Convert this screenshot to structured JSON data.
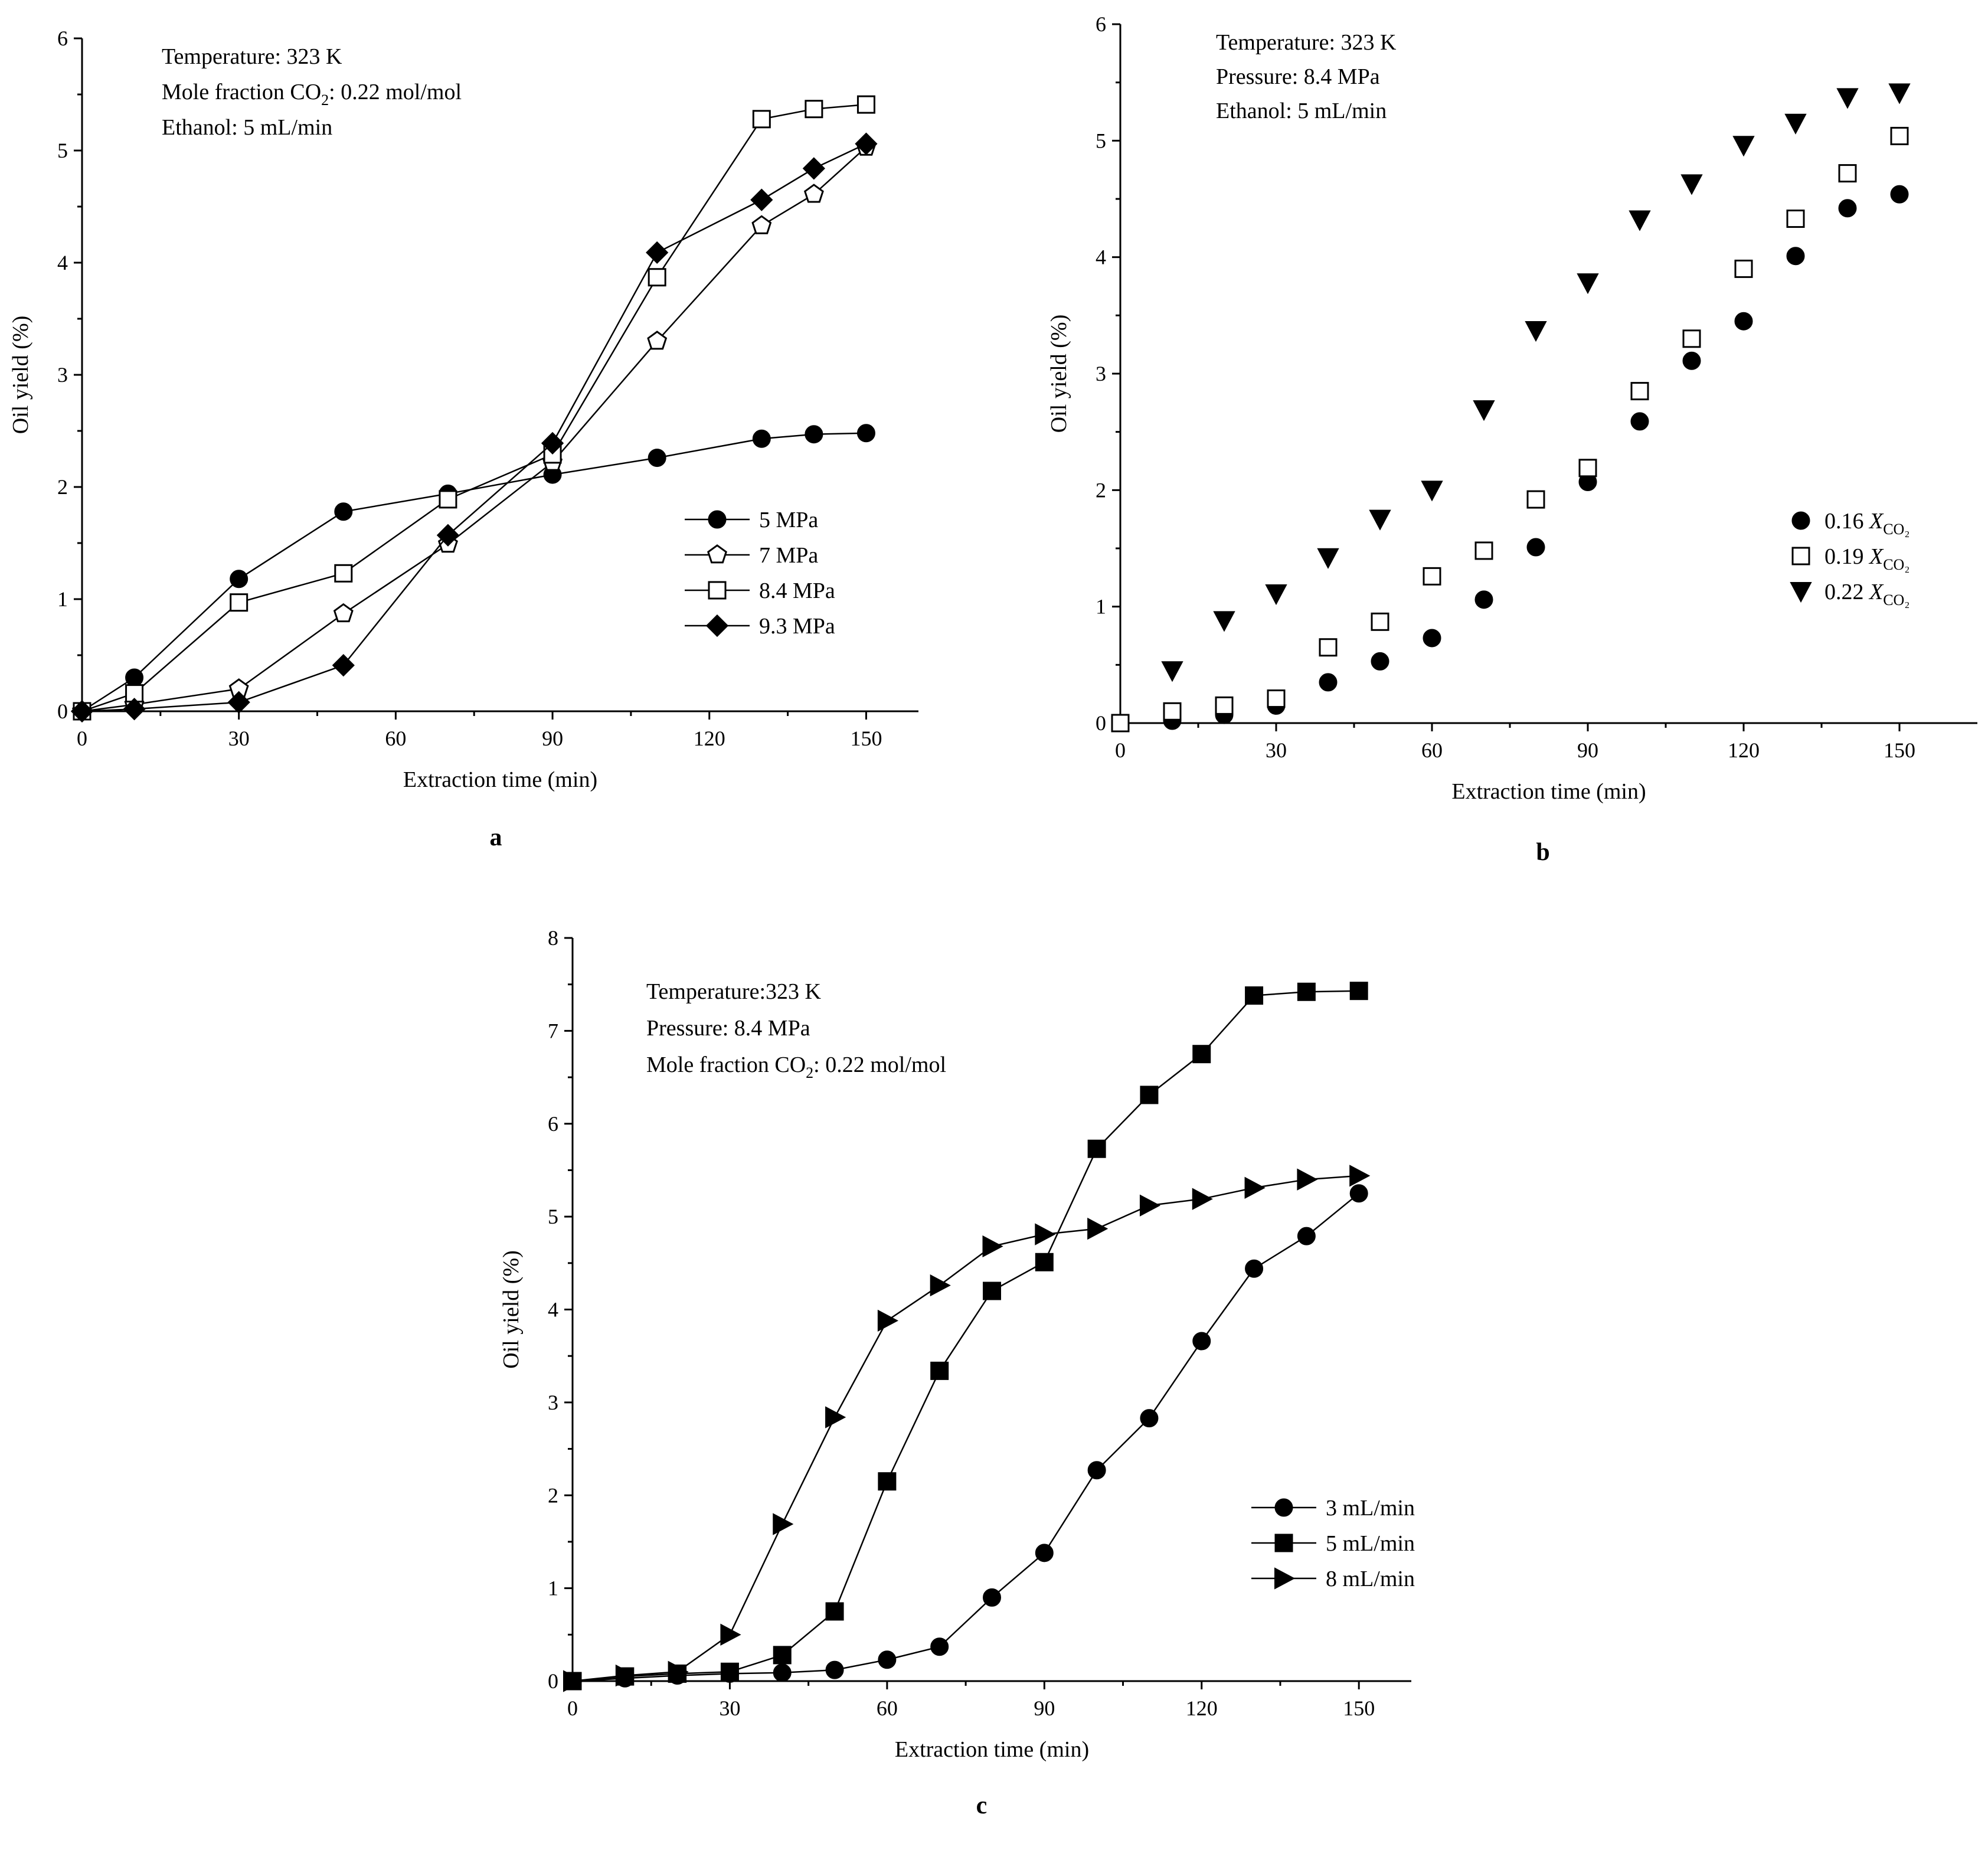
{
  "chart_data": [
    {
      "panel": "a",
      "type": "line",
      "xlabel": "Extraction time (min)",
      "ylabel": "Oil yield (%)",
      "xlim": [
        0,
        160
      ],
      "ylim": [
        0,
        6
      ],
      "xticks": [
        0,
        30,
        60,
        90,
        120,
        150
      ],
      "yticks": [
        0,
        1,
        2,
        3,
        4,
        5,
        6
      ],
      "notes": [
        {
          "text": "Temperature: 323 K"
        },
        {
          "text": "Mole fraction CO",
          "sub": "2",
          "tail": ": 0.22 mol/mol"
        },
        {
          "text": "Ethanol: 5 mL/min"
        }
      ],
      "legend_position": "center-right",
      "series": [
        {
          "name": "5 MPa",
          "marker": "circle-filled",
          "lines": true,
          "x": [
            0,
            10,
            30,
            50,
            70,
            90,
            110,
            130,
            140,
            150
          ],
          "y": [
            0,
            0.3,
            1.18,
            1.78,
            1.94,
            2.11,
            2.26,
            2.43,
            2.47,
            2.48
          ]
        },
        {
          "name": "7 MPa",
          "marker": "pentagon-open",
          "lines": true,
          "x": [
            0,
            10,
            30,
            50,
            70,
            90,
            110,
            130,
            140,
            150
          ],
          "y": [
            0,
            0.06,
            0.2,
            0.87,
            1.49,
            2.22,
            3.3,
            4.33,
            4.61,
            5.03
          ]
        },
        {
          "name": "8.4 MPa",
          "marker": "square-open",
          "lines": true,
          "x": [
            0,
            10,
            30,
            50,
            70,
            90,
            110,
            130,
            140,
            150
          ],
          "y": [
            0,
            0.16,
            0.97,
            1.23,
            1.89,
            2.29,
            3.87,
            5.28,
            5.37,
            5.41
          ]
        },
        {
          "name": "9.3 MPa",
          "marker": "diamond-filled",
          "lines": true,
          "x": [
            0,
            10,
            30,
            50,
            70,
            90,
            110,
            130,
            140,
            150
          ],
          "y": [
            0,
            0.02,
            0.08,
            0.41,
            1.57,
            2.39,
            4.09,
            4.56,
            4.84,
            5.06
          ]
        }
      ]
    },
    {
      "panel": "b",
      "type": "scatter",
      "xlabel": "Extraction time (min)",
      "ylabel": "Oil yield (%)",
      "xlim": [
        0,
        165
      ],
      "ylim": [
        0,
        6
      ],
      "xticks": [
        0,
        30,
        60,
        90,
        120,
        150
      ],
      "yticks": [
        0,
        1,
        2,
        3,
        4,
        5,
        6
      ],
      "notes": [
        {
          "text": "Temperature: 323 K"
        },
        {
          "text": "Pressure: 8.4 MPa"
        },
        {
          "text": "Ethanol: 5 mL/min"
        }
      ],
      "legend_position": "lower-right",
      "legend_var": "X",
      "legend_sub": "CO₂",
      "series": [
        {
          "name": "0.16",
          "marker": "circle-filled",
          "lines": false,
          "x": [
            0,
            10,
            20,
            30,
            40,
            50,
            60,
            70,
            80,
            90,
            100,
            110,
            120,
            130,
            140,
            150
          ],
          "y": [
            0,
            0.02,
            0.07,
            0.15,
            0.35,
            0.53,
            0.73,
            1.06,
            1.51,
            2.07,
            2.59,
            3.11,
            3.45,
            4.01,
            4.42,
            4.54
          ]
        },
        {
          "name": "0.19",
          "marker": "square-open",
          "lines": false,
          "x": [
            0,
            10,
            20,
            30,
            40,
            50,
            60,
            70,
            80,
            90,
            100,
            110,
            120,
            130,
            140,
            150
          ],
          "y": [
            0,
            0.1,
            0.15,
            0.21,
            0.65,
            0.87,
            1.26,
            1.48,
            1.92,
            2.19,
            2.85,
            3.3,
            3.9,
            4.33,
            4.72,
            5.04
          ]
        },
        {
          "name": "0.22",
          "marker": "triangle-down-filled",
          "lines": false,
          "x": [
            10,
            20,
            30,
            40,
            50,
            60,
            70,
            80,
            90,
            100,
            110,
            120,
            130,
            140,
            150
          ],
          "y": [
            0.45,
            0.88,
            1.11,
            1.42,
            1.75,
            2.0,
            2.69,
            3.37,
            3.78,
            4.32,
            4.63,
            4.96,
            5.15,
            5.37,
            5.41
          ]
        }
      ]
    },
    {
      "panel": "c",
      "type": "line",
      "xlabel": "Extraction time (min)",
      "ylabel": "Oil yield (%)",
      "xlim": [
        0,
        160
      ],
      "ylim": [
        0,
        8
      ],
      "xticks": [
        0,
        30,
        60,
        90,
        120,
        150
      ],
      "yticks": [
        0,
        1,
        2,
        3,
        4,
        5,
        6,
        7,
        8
      ],
      "notes": [
        {
          "text": "Temperature:323 K"
        },
        {
          "text": "Pressure: 8.4 MPa"
        },
        {
          "text": "Mole fraction CO",
          "sub": "2",
          "tail": ": 0.22 mol/mol"
        }
      ],
      "legend_position": "lower-right",
      "series": [
        {
          "name": "3 mL/min",
          "marker": "circle-filled",
          "lines": true,
          "x": [
            0,
            10,
            20,
            30,
            40,
            50,
            60,
            70,
            80,
            90,
            100,
            110,
            120,
            130,
            140,
            150
          ],
          "y": [
            0,
            0.03,
            0.06,
            0.08,
            0.09,
            0.12,
            0.23,
            0.37,
            0.9,
            1.38,
            2.27,
            2.83,
            3.66,
            4.44,
            4.79,
            5.25
          ]
        },
        {
          "name": "5 mL/min",
          "marker": "square-filled",
          "lines": true,
          "x": [
            0,
            10,
            20,
            30,
            40,
            50,
            60,
            70,
            80,
            90,
            100,
            110,
            120,
            130,
            140,
            150
          ],
          "y": [
            0,
            0.05,
            0.08,
            0.1,
            0.28,
            0.75,
            2.15,
            3.34,
            4.2,
            4.51,
            5.73,
            6.31,
            6.75,
            7.38,
            7.42,
            7.43
          ]
        },
        {
          "name": "8 mL/min",
          "marker": "triangle-right-filled",
          "lines": true,
          "x": [
            0,
            10,
            20,
            30,
            40,
            50,
            60,
            70,
            80,
            90,
            100,
            110,
            120,
            130,
            140,
            150
          ],
          "y": [
            0,
            0.06,
            0.1,
            0.5,
            1.69,
            2.84,
            3.88,
            4.26,
            4.68,
            4.81,
            4.87,
            5.12,
            5.19,
            5.31,
            5.4,
            5.44
          ]
        }
      ]
    }
  ]
}
